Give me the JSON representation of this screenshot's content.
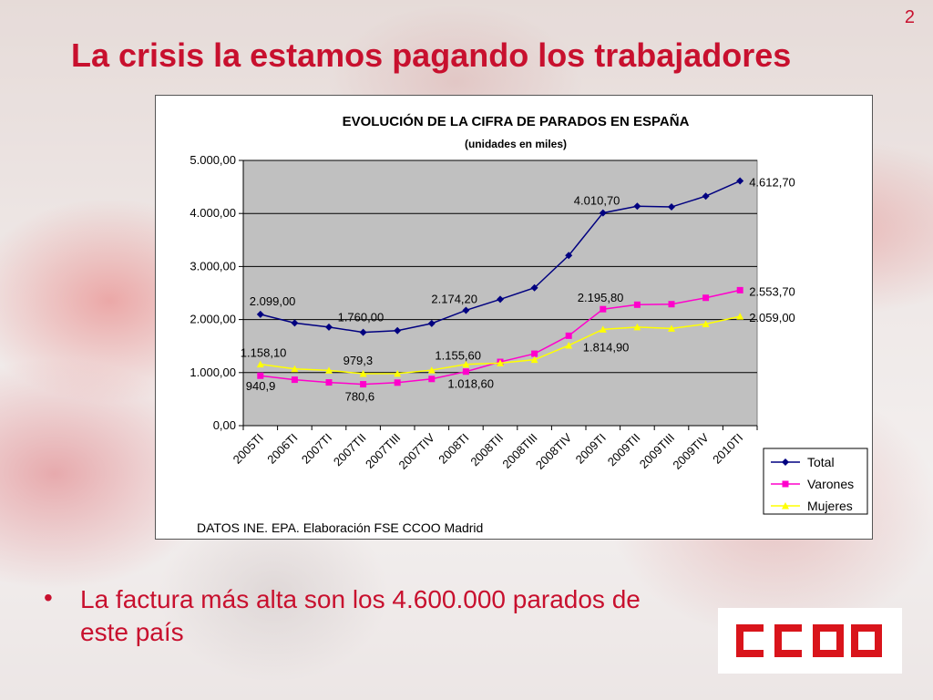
{
  "slide": {
    "number": "2",
    "title": "La crisis la estamos pagando los trabajadores"
  },
  "bullet": {
    "marker": "•",
    "text": "La factura más alta son los 4.600.000 parados de este país"
  },
  "logo": {
    "text": "CCOO",
    "color": "#d9141b"
  },
  "chart_data": {
    "type": "line",
    "title": "EVOLUCIÓN DE LA CIFRA DE PARADOS EN ESPAÑA",
    "subtitle": "(unidades en miles)",
    "source": "DATOS INE. EPA. Elaboración FSE CCOO Madrid",
    "categories": [
      "2005TI",
      "2006TI",
      "2007TI",
      "2007TII",
      "2007TIII",
      "2007TIV",
      "2008TI",
      "2008TII",
      "2008TIII",
      "2008TIV",
      "2009TI",
      "2009TII",
      "2009TIII",
      "2009TIV",
      "2010TI"
    ],
    "ylim": [
      0,
      5000
    ],
    "yticks": [
      0,
      1000,
      2000,
      3000,
      4000,
      5000
    ],
    "ytick_labels": [
      "0,00",
      "1.000,00",
      "2.000,00",
      "3.000,00",
      "4.000,00",
      "5.000,00"
    ],
    "grid": true,
    "plot_background": "#c0c0c0",
    "legend_position": "bottom-right",
    "series": [
      {
        "name": "Total",
        "color": "#000080",
        "marker": "diamond",
        "values": [
          2099.0,
          1936,
          1857,
          1760.0,
          1792,
          1927,
          2174.2,
          2381,
          2599,
          3208,
          4010.7,
          4137,
          4123,
          4326,
          4612.7
        ]
      },
      {
        "name": "Varones",
        "color": "#ff00cc",
        "marker": "square",
        "values": [
          940.9,
          866,
          815,
          780.6,
          811,
          880,
          1018.6,
          1202,
          1356,
          1695,
          2195.8,
          2280,
          2290,
          2410,
          2553.7
        ]
      },
      {
        "name": "Mujeres",
        "color": "#ffff00",
        "marker": "triangle",
        "values": [
          1158.1,
          1070,
          1041,
          979.3,
          981,
          1047,
          1155.6,
          1179,
          1243,
          1513,
          1814.9,
          1857,
          1833,
          1916,
          2059.0
        ]
      }
    ],
    "data_labels": [
      {
        "series": 0,
        "index": 0,
        "text": "2.099,00"
      },
      {
        "series": 0,
        "index": 3,
        "text": "1.760,00"
      },
      {
        "series": 0,
        "index": 6,
        "text": "2.174,20"
      },
      {
        "series": 0,
        "index": 10,
        "text": "4.010,70"
      },
      {
        "series": 0,
        "index": 14,
        "text": "4.612,70"
      },
      {
        "series": 1,
        "index": 0,
        "text": "940,9"
      },
      {
        "series": 1,
        "index": 3,
        "text": "780,6"
      },
      {
        "series": 1,
        "index": 6,
        "text": "1.018,60"
      },
      {
        "series": 1,
        "index": 10,
        "text": "2.195,80"
      },
      {
        "series": 1,
        "index": 14,
        "text": "2.553,70"
      },
      {
        "series": 2,
        "index": 0,
        "text": "1.158,10"
      },
      {
        "series": 2,
        "index": 3,
        "text": "979,3"
      },
      {
        "series": 2,
        "index": 6,
        "text": "1.155,60"
      },
      {
        "series": 2,
        "index": 10,
        "text": "1.814,90"
      },
      {
        "series": 2,
        "index": 14,
        "text": "2.059,00"
      }
    ]
  }
}
